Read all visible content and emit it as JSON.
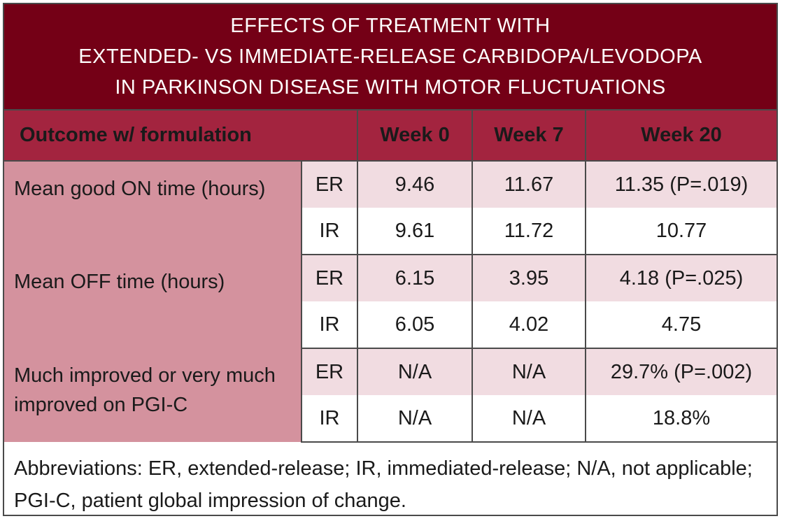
{
  "title": {
    "line1": "EFFECTS OF TREATMENT WITH",
    "line2": "EXTENDED- VS IMMEDIATE-RELEASE CARBIDOPA/LEVODOPA",
    "line3": "IN PARKINSON DISEASE WITH MOTOR FLUCTUATIONS"
  },
  "headers": {
    "outcome": "Outcome w/ formulation",
    "week0": "Week 0",
    "week7": "Week 7",
    "week20": "Week 20"
  },
  "rows": [
    {
      "outcome": "Mean good ON time (hours)",
      "er": {
        "label": "ER",
        "week0": "9.46",
        "week7": "11.67",
        "week20": "11.35 (P=.019)"
      },
      "ir": {
        "label": "IR",
        "week0": "9.61",
        "week7": "11.72",
        "week20": "10.77"
      }
    },
    {
      "outcome": "Mean OFF time (hours)",
      "er": {
        "label": "ER",
        "week0": "6.15",
        "week7": "3.95",
        "week20": "4.18 (P=.025)"
      },
      "ir": {
        "label": "IR",
        "week0": "6.05",
        "week7": "4.02",
        "week20": "4.75"
      }
    },
    {
      "outcome": "Much improved or very much improved on PGI-C",
      "er": {
        "label": "ER",
        "week0": "N/A",
        "week7": "N/A",
        "week20": "29.7% (P=.002)"
      },
      "ir": {
        "label": "IR",
        "week0": "N/A",
        "week7": "N/A",
        "week20": "18.8%"
      }
    }
  ],
  "footnote": "Abbreviations: ER, extended-release; IR, immediated-release; N/A, not applicable; PGI-C, patient global impression of change.",
  "colors": {
    "title_bg": "#740016",
    "header_bg": "#a3243f",
    "outcome_bg": "#d4929e",
    "er_row_bg": "#f1dce1"
  }
}
